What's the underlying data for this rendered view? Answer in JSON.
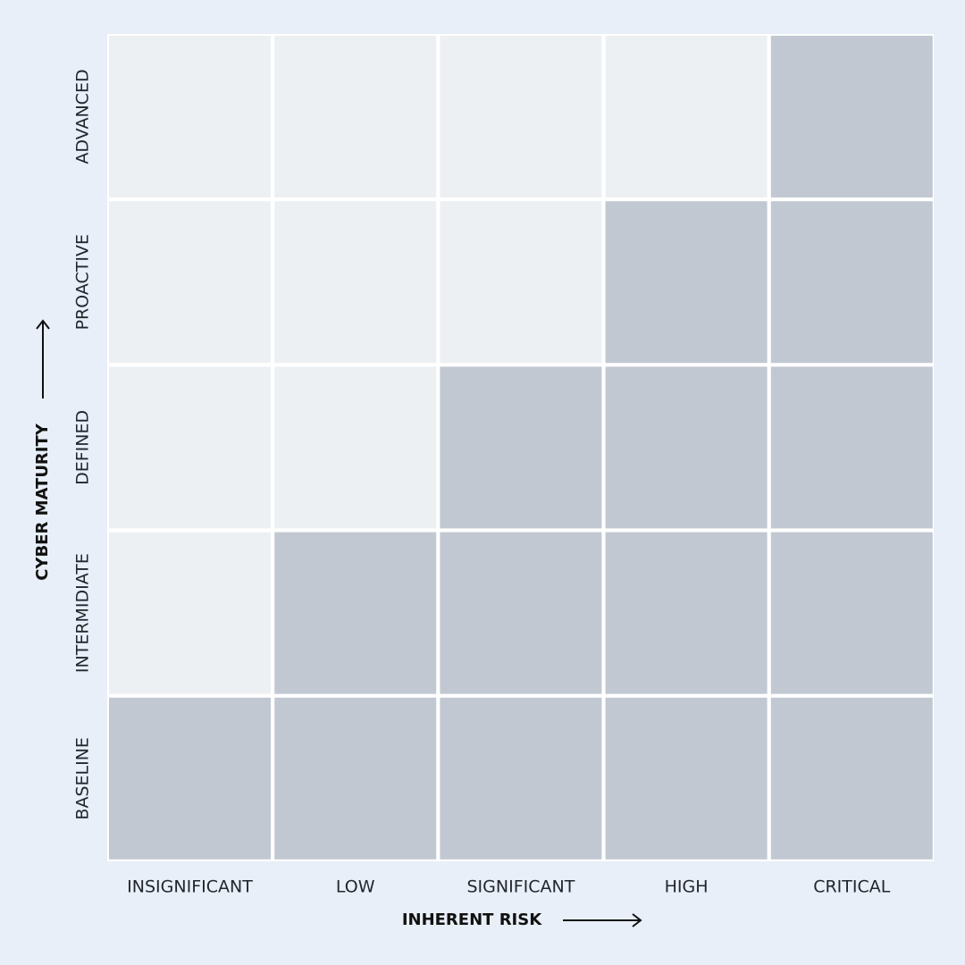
{
  "x_axis": {
    "title": "INHERENT RISK",
    "labels": [
      "INSIGNIFICANT",
      "LOW",
      "SIGNIFICANT",
      "HIGH",
      "CRITICAL"
    ]
  },
  "y_axis": {
    "title": "CYBER MATURITY",
    "labels": [
      "ADVANCED",
      "PROACTIVE",
      "DEFINED",
      "INTERMIDIATE",
      "BASELINE"
    ]
  },
  "cell_colors": [
    [
      "#edf0f3",
      "#edf0f3",
      "#edf0f3",
      "#edf0f3",
      "#c1c8d2"
    ],
    [
      "#edf0f3",
      "#edf0f3",
      "#edf0f3",
      "#c1c8d2",
      "#c1c8d2"
    ],
    [
      "#edf0f3",
      "#edf0f3",
      "#c1c8d2",
      "#c1c8d2",
      "#c1c8d2"
    ],
    [
      "#edf0f3",
      "#c1c8d2",
      "#c1c8d2",
      "#c1c8d2",
      "#c1c8d2"
    ],
    [
      "#c1c8d2",
      "#c1c8d2",
      "#c1c8d2",
      "#c1c8d2",
      "#c1c8d2"
    ]
  ]
}
